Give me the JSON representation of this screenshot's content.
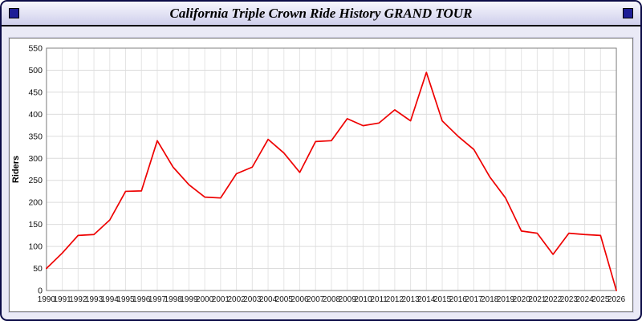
{
  "header": {
    "title": "California Triple Crown Ride History GRAND TOUR"
  },
  "colors": {
    "line": "#ee0000",
    "titlebar_square": "#1e1e96",
    "page_background": "#eaeaf6",
    "panel_background": "#ffffff",
    "grid": "#dcdcdc"
  },
  "chart_data": {
    "type": "line",
    "title": "California Triple Crown Ride History GRAND TOUR",
    "xlabel": "",
    "ylabel": "Riders",
    "x": [
      1990,
      1991,
      1992,
      1993,
      1994,
      1995,
      1996,
      1997,
      1998,
      1999,
      2000,
      2001,
      2002,
      2003,
      2004,
      2005,
      2006,
      2007,
      2008,
      2009,
      2010,
      2011,
      2012,
      2013,
      2014,
      2015,
      2016,
      2017,
      2018,
      2019,
      2020,
      2021,
      2022,
      2023,
      2024,
      2025,
      2026
    ],
    "series": [
      {
        "name": "Riders",
        "color": "#ee0000",
        "values": [
          50,
          85,
          125,
          127,
          160,
          225,
          226,
          340,
          280,
          240,
          212,
          210,
          265,
          280,
          343,
          312,
          268,
          338,
          340,
          390,
          374,
          380,
          410,
          385,
          495,
          385,
          350,
          320,
          258,
          210,
          135,
          130,
          82,
          130,
          127,
          125,
          0
        ]
      }
    ],
    "ylim": [
      0,
      550
    ],
    "ytick_step": 50,
    "grid": true,
    "legend": false
  }
}
